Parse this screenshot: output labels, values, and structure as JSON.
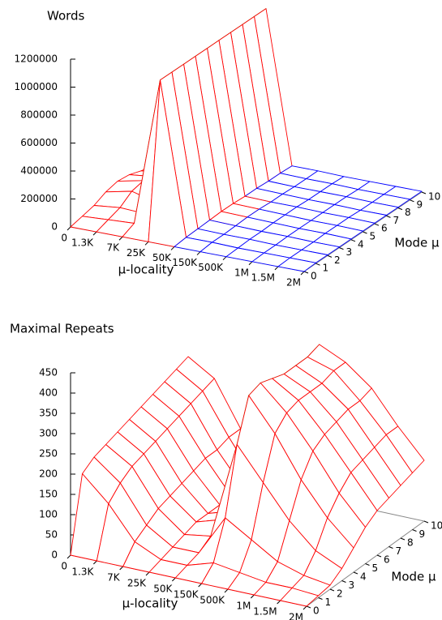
{
  "chart_data": [
    {
      "type": "surface",
      "title": "Words",
      "x_label": "μ-locality",
      "y_label": "Mode μ",
      "categories": [
        "0",
        "1.3K",
        "7K",
        "25K",
        "50K",
        "150K",
        "500K",
        "1M",
        "1.5M",
        "2M"
      ],
      "ylim": [
        0,
        10
      ],
      "yticks": [
        0,
        1,
        2,
        3,
        4,
        5,
        6,
        7,
        8,
        9,
        10
      ],
      "zlim": [
        0,
        1200000
      ],
      "zticks": [
        0,
        200000,
        400000,
        600000,
        800000,
        1000000,
        1200000
      ],
      "surface_color": "#ff0000",
      "underside_color": "#00a000",
      "base_color": "#0000ff",
      "values": [
        [
          0,
          0,
          0,
          0,
          0,
          0,
          0,
          0,
          0,
          0
        ],
        [
          20000,
          30000,
          40000,
          1100000,
          10000,
          10000,
          5000,
          5000,
          5000,
          5000
        ],
        [
          40000,
          60000,
          50000,
          1100000,
          15000,
          10000,
          10000,
          5000,
          5000,
          5000
        ],
        [
          80000,
          120000,
          70000,
          1100000,
          20000,
          15000,
          10000,
          10000,
          5000,
          5000
        ],
        [
          100000,
          140000,
          80000,
          1100000,
          25000,
          20000,
          15000,
          10000,
          10000,
          5000
        ],
        [
          90000,
          110000,
          70000,
          1100000,
          25000,
          20000,
          15000,
          10000,
          10000,
          5000
        ],
        [
          60000,
          80000,
          50000,
          1100000,
          20000,
          15000,
          15000,
          10000,
          10000,
          5000
        ],
        [
          40000,
          50000,
          40000,
          1100000,
          20000,
          15000,
          10000,
          10000,
          5000,
          5000
        ],
        [
          30000,
          40000,
          30000,
          1100000,
          15000,
          10000,
          10000,
          10000,
          5000,
          5000
        ],
        [
          20000,
          30000,
          20000,
          1100000,
          15000,
          10000,
          10000,
          5000,
          5000,
          5000
        ],
        [
          20000,
          20000,
          20000,
          1100000,
          10000,
          10000,
          5000,
          5000,
          5000,
          5000
        ]
      ]
    },
    {
      "type": "surface",
      "title": "Maximal Repeats",
      "x_label": "μ-locality",
      "y_label": "Mode μ",
      "categories": [
        "0",
        "1.3K",
        "7K",
        "25K",
        "50K",
        "150K",
        "500K",
        "1M",
        "1.5M",
        "2M"
      ],
      "ylim": [
        0,
        10
      ],
      "yticks": [
        0,
        1,
        2,
        3,
        4,
        5,
        6,
        7,
        8,
        9,
        10
      ],
      "zlim": [
        0,
        450
      ],
      "zticks": [
        0,
        50,
        100,
        150,
        200,
        250,
        300,
        350,
        400,
        450
      ],
      "surface_color": "#ff0000",
      "underside_color": "#00a000",
      "base_color": "#0000ff",
      "values": [
        [
          0,
          0,
          0,
          0,
          0,
          0,
          0,
          0,
          0,
          0
        ],
        [
          180,
          120,
          40,
          10,
          10,
          30,
          20,
          10,
          10,
          5
        ],
        [
          200,
          150,
          60,
          20,
          20,
          120,
          80,
          40,
          20,
          10
        ],
        [
          210,
          170,
          80,
          30,
          40,
          280,
          200,
          120,
          60,
          30
        ],
        [
          220,
          180,
          90,
          40,
          60,
          380,
          300,
          200,
          120,
          60
        ],
        [
          230,
          190,
          100,
          40,
          60,
          390,
          330,
          250,
          160,
          90
        ],
        [
          240,
          200,
          110,
          40,
          50,
          380,
          340,
          270,
          190,
          110
        ],
        [
          250,
          210,
          120,
          40,
          50,
          370,
          340,
          280,
          200,
          120
        ],
        [
          260,
          220,
          120,
          40,
          50,
          370,
          340,
          290,
          210,
          130
        ],
        [
          270,
          230,
          130,
          40,
          50,
          370,
          350,
          290,
          220,
          140
        ],
        [
          280,
          240,
          130,
          40,
          50,
          380,
          350,
          300,
          220,
          150
        ]
      ]
    }
  ]
}
